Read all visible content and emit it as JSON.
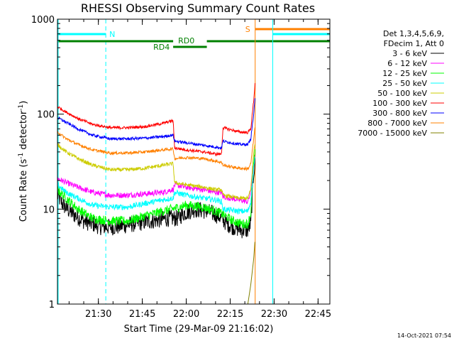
{
  "chart_data": {
    "type": "line",
    "title": "RHESSI Observing Summary Count Rates",
    "xlabel": "Start Time (29-Mar-09 21:16:02)",
    "ylabel_main": "Count Rate (s",
    "ylabel_sup1": "-1",
    "ylabel_mid": " detector",
    "ylabel_sup2": "-1",
    "ylabel_end": ")",
    "y_scale": "log",
    "ylim": [
      1,
      1000
    ],
    "xlim_minutes": [
      0,
      93
    ],
    "grid": false,
    "legend_position": "right",
    "x_ticks": [
      {
        "minute": 13.97,
        "label": "21:30"
      },
      {
        "minute": 28.97,
        "label": "21:45"
      },
      {
        "minute": 43.97,
        "label": "22:00"
      },
      {
        "minute": 58.97,
        "label": "22:15"
      },
      {
        "minute": 73.97,
        "label": "22:30"
      },
      {
        "minute": 88.97,
        "label": "22:45"
      }
    ],
    "y_ticks": [
      {
        "value": 1,
        "label": "1"
      },
      {
        "value": 10,
        "label": "10"
      },
      {
        "value": 100,
        "label": "100"
      },
      {
        "value": 1000,
        "label": "1000"
      }
    ],
    "legend_header": [
      "Det 1,3,4,5,6,9,",
      "FDecim 1, Att 0"
    ],
    "series": [
      {
        "name": "3 - 6 keV",
        "color": "#000000",
        "noise": 0.09,
        "points": [
          [
            0,
            14
          ],
          [
            2,
            11
          ],
          [
            5,
            9
          ],
          [
            9,
            7.5
          ],
          [
            15,
            6.5
          ],
          [
            20,
            6.5
          ],
          [
            26,
            7
          ],
          [
            32,
            7.5
          ],
          [
            38,
            8
          ],
          [
            41,
            8
          ],
          [
            43,
            9
          ],
          [
            47,
            10
          ],
          [
            51,
            9.5
          ],
          [
            55,
            8.5
          ],
          [
            58,
            7
          ],
          [
            60,
            6.5
          ],
          [
            63,
            6
          ],
          [
            65,
            6
          ],
          [
            66,
            7
          ],
          [
            67,
            25
          ],
          [
            67.5,
            30
          ]
        ]
      },
      {
        "name": "6 - 12 keV",
        "color": "#ff00ff",
        "noise": 0.03,
        "points": [
          [
            0,
            21
          ],
          [
            3,
            19
          ],
          [
            7,
            17
          ],
          [
            12,
            15
          ],
          [
            18,
            14
          ],
          [
            24,
            14
          ],
          [
            30,
            14.5
          ],
          [
            36,
            15
          ],
          [
            39,
            16
          ],
          [
            39.5,
            16
          ],
          [
            40,
            18
          ],
          [
            44,
            17
          ],
          [
            50,
            16
          ],
          [
            54,
            15
          ],
          [
            56,
            15
          ],
          [
            56.5,
            13.5
          ],
          [
            62,
            12.5
          ],
          [
            65,
            12
          ],
          [
            66,
            15
          ],
          [
            67,
            30
          ],
          [
            67.5,
            38
          ]
        ]
      },
      {
        "name": "12 - 25 keV",
        "color": "#00ff00",
        "noise": 0.05,
        "points": [
          [
            0,
            16
          ],
          [
            3,
            13
          ],
          [
            7,
            10
          ],
          [
            12,
            8
          ],
          [
            18,
            7.5
          ],
          [
            24,
            7.5
          ],
          [
            30,
            8.5
          ],
          [
            36,
            9.5
          ],
          [
            39,
            10
          ],
          [
            44,
            11
          ],
          [
            50,
            10.5
          ],
          [
            54,
            9.5
          ],
          [
            56,
            9
          ],
          [
            60,
            7.5
          ],
          [
            63,
            7
          ],
          [
            65,
            7
          ],
          [
            66,
            9
          ],
          [
            67,
            30
          ],
          [
            67.5,
            40
          ]
        ]
      },
      {
        "name": "25 - 50 keV",
        "color": "#00ffff",
        "noise": 0.03,
        "points": [
          [
            0,
            18
          ],
          [
            3,
            15
          ],
          [
            7,
            13
          ],
          [
            12,
            11
          ],
          [
            18,
            10.5
          ],
          [
            24,
            10.5
          ],
          [
            30,
            11.5
          ],
          [
            36,
            12.5
          ],
          [
            39,
            13
          ],
          [
            39.5,
            13
          ],
          [
            40,
            15
          ],
          [
            44,
            14
          ],
          [
            50,
            13
          ],
          [
            54,
            12.5
          ],
          [
            56,
            12
          ],
          [
            56.5,
            10
          ],
          [
            62,
            9.5
          ],
          [
            65,
            9.5
          ],
          [
            66,
            12
          ],
          [
            67,
            28
          ],
          [
            67.5,
            35
          ]
        ]
      },
      {
        "name": "50 - 100 keV",
        "color": "#cccc00",
        "noise": 0.02,
        "points": [
          [
            0,
            48
          ],
          [
            3,
            40
          ],
          [
            7,
            34
          ],
          [
            12,
            29
          ],
          [
            18,
            26
          ],
          [
            24,
            26
          ],
          [
            30,
            27
          ],
          [
            36,
            29
          ],
          [
            39,
            30
          ],
          [
            39.5,
            30
          ],
          [
            40,
            19
          ],
          [
            44,
            18
          ],
          [
            50,
            17
          ],
          [
            54,
            16
          ],
          [
            56,
            16
          ],
          [
            56.5,
            14
          ],
          [
            62,
            13
          ],
          [
            65,
            13
          ],
          [
            66,
            16
          ],
          [
            67,
            40
          ],
          [
            67.5,
            50
          ]
        ]
      },
      {
        "name": "100 - 300 keV",
        "color": "#ff0000",
        "noise": 0.015,
        "points": [
          [
            0,
            120
          ],
          [
            3,
            105
          ],
          [
            7,
            90
          ],
          [
            12,
            78
          ],
          [
            18,
            72
          ],
          [
            24,
            72
          ],
          [
            30,
            74
          ],
          [
            36,
            80
          ],
          [
            39,
            85
          ],
          [
            39.5,
            85
          ],
          [
            40,
            44
          ],
          [
            44,
            42
          ],
          [
            50,
            40
          ],
          [
            54,
            38
          ],
          [
            56,
            38
          ],
          [
            56.5,
            72
          ],
          [
            62,
            65
          ],
          [
            65,
            64
          ],
          [
            66,
            70
          ],
          [
            67,
            140
          ],
          [
            67.5,
            220
          ]
        ]
      },
      {
        "name": "300 - 800 keV",
        "color": "#0000ff",
        "noise": 0.015,
        "points": [
          [
            0,
            92
          ],
          [
            3,
            82
          ],
          [
            7,
            70
          ],
          [
            12,
            60
          ],
          [
            18,
            55
          ],
          [
            24,
            55
          ],
          [
            30,
            56
          ],
          [
            36,
            58
          ],
          [
            39,
            60
          ],
          [
            39.5,
            60
          ],
          [
            40,
            52
          ],
          [
            44,
            50
          ],
          [
            50,
            47
          ],
          [
            54,
            45
          ],
          [
            56,
            44
          ],
          [
            56.5,
            52
          ],
          [
            62,
            48
          ],
          [
            65,
            48
          ],
          [
            66,
            55
          ],
          [
            67,
            100
          ],
          [
            67.5,
            150
          ]
        ]
      },
      {
        "name": "800 - 7000 keV",
        "color": "#ff8000",
        "noise": 0.015,
        "points": [
          [
            0,
            65
          ],
          [
            3,
            55
          ],
          [
            7,
            48
          ],
          [
            12,
            42
          ],
          [
            18,
            39
          ],
          [
            24,
            39
          ],
          [
            30,
            40
          ],
          [
            36,
            42
          ],
          [
            39,
            43
          ],
          [
            39.5,
            43
          ],
          [
            40,
            34
          ],
          [
            44,
            35
          ],
          [
            50,
            34
          ],
          [
            54,
            32
          ],
          [
            56,
            31
          ],
          [
            56.5,
            29
          ],
          [
            62,
            27
          ],
          [
            65,
            26.5
          ],
          [
            66,
            30
          ],
          [
            67,
            55
          ],
          [
            67.5,
            75
          ]
        ]
      },
      {
        "name": "7000 - 15000 keV",
        "color": "#808000",
        "noise": 0.0,
        "points": [
          [
            65,
            1
          ],
          [
            66,
            1.6
          ],
          [
            67,
            3
          ],
          [
            67.5,
            5
          ]
        ]
      }
    ],
    "state_bars": {
      "N": {
        "label": "N",
        "color": "#00ffff",
        "segments": [
          [
            0,
            16.5
          ],
          [
            73.5,
            93
          ]
        ],
        "dashed_at": [
          16.5
        ]
      },
      "S": {
        "label": "S",
        "color": "#ff8000",
        "segments": [
          [
            67.5,
            93
          ]
        ],
        "dashed_at": [
          93
        ]
      },
      "RD0": {
        "label": "RD0",
        "color": "#008000",
        "segments": [
          [
            0,
            39.5
          ],
          [
            51,
            93
          ]
        ]
      },
      "RD4": {
        "label": "RD4",
        "color": "#008000",
        "segments": [
          [
            39.5,
            51
          ]
        ]
      }
    },
    "timestamp": "14-Oct-2021 07:54"
  }
}
